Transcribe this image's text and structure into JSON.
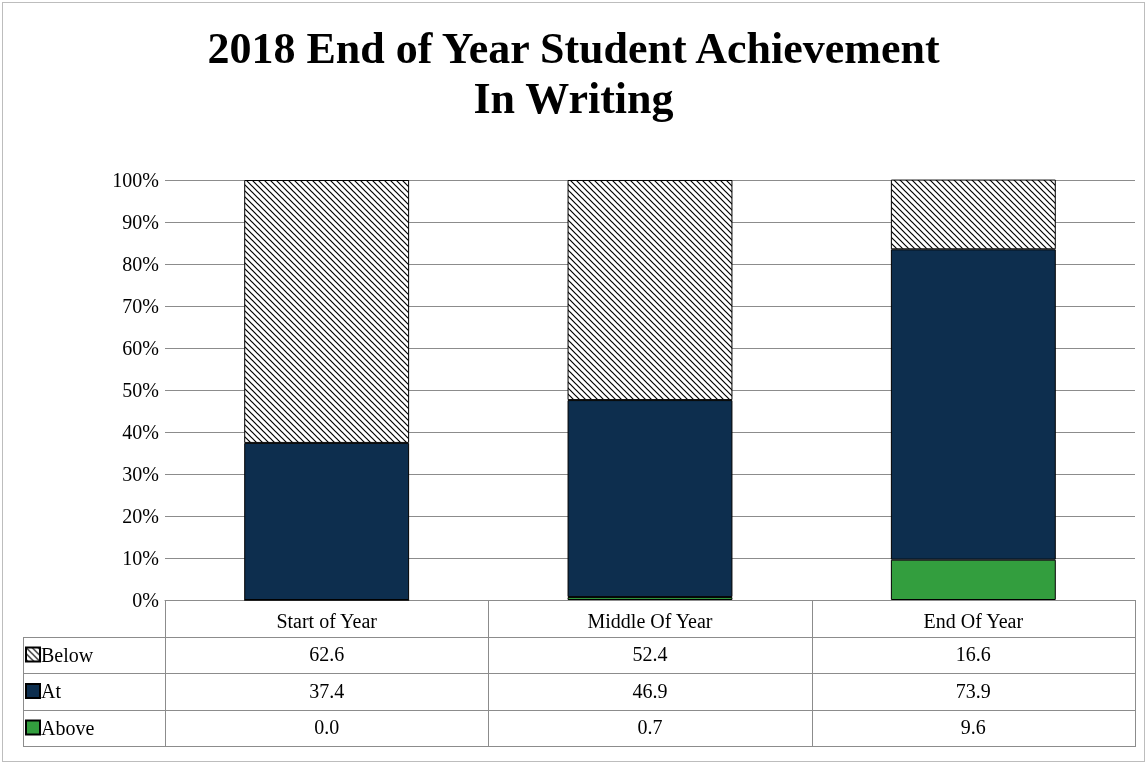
{
  "chart_data": {
    "type": "bar",
    "title": "2018 End of Year Student Achievement\nIn Writing",
    "stacked": true,
    "categories": [
      "Start of Year",
      "Middle Of Year",
      "End Of Year"
    ],
    "series": [
      {
        "name": "Above",
        "color": "#339e3e",
        "values": [
          0.0,
          0.7,
          9.6
        ],
        "value_labels": [
          "0.0",
          "0.7",
          "9.6"
        ]
      },
      {
        "name": "At",
        "color": "#0d2e4e",
        "values": [
          37.4,
          46.9,
          73.9
        ],
        "value_labels": [
          "37.4",
          "46.9",
          "73.9"
        ]
      },
      {
        "name": "Below",
        "color": "#000000",
        "values": [
          62.6,
          52.4,
          16.6
        ],
        "value_labels": [
          "62.6",
          "52.4",
          "16.6"
        ]
      }
    ],
    "ylim": [
      0,
      100
    ],
    "yticks": [
      {
        "value": 0,
        "label": "0%"
      },
      {
        "value": 10,
        "label": "10%"
      },
      {
        "value": 20,
        "label": "20%"
      },
      {
        "value": 30,
        "label": "30%"
      },
      {
        "value": 40,
        "label": "40%"
      },
      {
        "value": 50,
        "label": "50%"
      },
      {
        "value": 60,
        "label": "60%"
      },
      {
        "value": 70,
        "label": "70%"
      },
      {
        "value": 80,
        "label": "80%"
      },
      {
        "value": 90,
        "label": "90%"
      },
      {
        "value": 100,
        "label": "100%"
      }
    ],
    "grid": "y",
    "legend": "bottom"
  }
}
